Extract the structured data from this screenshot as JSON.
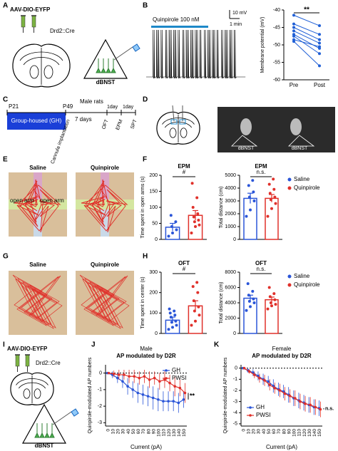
{
  "panel_labels": [
    "A",
    "B",
    "C",
    "D",
    "E",
    "F",
    "G",
    "H",
    "I",
    "J",
    "K"
  ],
  "a": {
    "virus": "AAV-DIO-EYFP",
    "cre": "Drd2::Cre",
    "region": "dBNST"
  },
  "b": {
    "drug": "Quinpirole 100 nM",
    "scale_y": "10 mV",
    "scale_x": "1 min"
  },
  "c": {
    "age_start": "P21",
    "age_end": "P49",
    "animals": "Male rats",
    "housing": "Group-housed (GH)",
    "interval": "7 days",
    "gap1": "1day",
    "gap2": "1day",
    "surgery": "Cannula implantation",
    "tests": [
      "OFT",
      "EPM",
      "SPT"
    ]
  },
  "d": {
    "region_left": "dBNST",
    "region_right": "dBNST"
  },
  "e": {
    "left": "Saline",
    "right": "Quinpirole",
    "arm_left": "open arm",
    "arm_right": "open arm"
  },
  "g": {
    "left": "Saline",
    "right": "Quinpirole"
  },
  "i": {
    "virus": "AAV-DIO-EYFP",
    "cre": "Drd2::Cre",
    "region": "dBNST"
  },
  "chart_data": [
    {
      "type": "paired",
      "categories": [
        "Pre",
        "Post"
      ],
      "y_label": "Membrane potential (mV)",
      "ylim": [
        -60,
        -40
      ],
      "yticks": [
        -40,
        -45,
        -50,
        -55,
        -60
      ],
      "color": "#1f5fd6",
      "significance": "**",
      "values": [
        [
          -41.5,
          -44.5
        ],
        [
          -44,
          -47
        ],
        [
          -45,
          -48.5
        ],
        [
          -46,
          -49.5
        ],
        [
          -47,
          -51
        ],
        [
          -47.5,
          -52.5
        ],
        [
          -48.5,
          -50.5
        ],
        [
          -49,
          -56
        ]
      ]
    },
    {
      "type": "bar",
      "title": "EPM",
      "y_label": "Time spent in open arms (s)",
      "ylim": [
        0,
        200
      ],
      "yticks": [
        0,
        50,
        100,
        150,
        200
      ],
      "significance": "#",
      "series": [
        {
          "color": "#2a55d8",
          "mean": 38,
          "error": 12,
          "values": [
            10,
            20,
            30,
            40,
            55,
            75
          ]
        },
        {
          "color": "#e0302a",
          "mean": 75,
          "error": 15,
          "values": [
            20,
            40,
            45,
            55,
            60,
            70,
            80,
            100,
            130,
            175
          ]
        }
      ]
    },
    {
      "type": "bar",
      "title": "EPM",
      "y_label": "Total distance (cm)",
      "ylim": [
        0,
        5000
      ],
      "yticks": [
        0,
        1000,
        2000,
        3000,
        4000,
        5000
      ],
      "significance": "n.s.",
      "legend": true,
      "series": [
        {
          "name": "Saline",
          "color": "#2a55d8",
          "mean": 3200,
          "error": 400,
          "values": [
            1800,
            2300,
            3000,
            3300,
            3700,
            4200,
            4600
          ]
        },
        {
          "name": "Quinpirole",
          "color": "#e0302a",
          "mean": 3200,
          "error": 300,
          "values": [
            1800,
            2400,
            2800,
            3100,
            3300,
            3600,
            3900,
            4300,
            4700
          ]
        }
      ]
    },
    {
      "type": "bar",
      "title": "OFT",
      "y_label": "Time spent in center (s)",
      "ylim": [
        0,
        300
      ],
      "yticks": [
        0,
        100,
        200,
        300
      ],
      "significance": "#",
      "series": [
        {
          "color": "#2a55d8",
          "mean": 65,
          "error": 15,
          "values": [
            20,
            30,
            40,
            55,
            60,
            80,
            90,
            100,
            110,
            120
          ]
        },
        {
          "color": "#e0302a",
          "mean": 135,
          "error": 25,
          "values": [
            40,
            60,
            90,
            110,
            130,
            160,
            200,
            230,
            250
          ]
        }
      ]
    },
    {
      "type": "bar",
      "title": "OFT",
      "y_label": "Total distance (cm)",
      "ylim": [
        0,
        8000
      ],
      "yticks": [
        0,
        2000,
        4000,
        6000,
        8000
      ],
      "significance": "n.s.",
      "legend": true,
      "series": [
        {
          "name": "Saline",
          "color": "#2a55d8",
          "mean": 4600,
          "error": 400,
          "values": [
            3000,
            3500,
            4000,
            4200,
            4500,
            5000,
            5500,
            6500
          ]
        },
        {
          "name": "Quinpirole",
          "color": "#e0302a",
          "mean": 4400,
          "error": 350,
          "values": [
            3200,
            3600,
            3800,
            4000,
            4400,
            4800,
            5200,
            6000
          ]
        }
      ]
    },
    {
      "type": "line",
      "group": "Male",
      "title": "AP modulated by D2R",
      "x_label": "Current (pA)",
      "y_label": "Quinpirole-modulated AP numbers",
      "legend": "upper right",
      "significance": "**",
      "categories": [
        0,
        10,
        20,
        30,
        40,
        50,
        60,
        70,
        80,
        90,
        100,
        110,
        120,
        130,
        140,
        150
      ],
      "ylim": [
        -3.2,
        0.5
      ],
      "yticks": [
        0,
        -1,
        -2,
        -3
      ],
      "series": [
        {
          "name": "GH",
          "color": "#2a55d8",
          "values": [
            0,
            -0.1,
            -0.3,
            -0.5,
            -0.8,
            -1.0,
            -1.2,
            -1.3,
            -1.4,
            -1.5,
            -1.6,
            -1.7,
            -1.7,
            -1.7,
            -1.8,
            -1.6
          ],
          "errors": [
            0,
            0.2,
            0.3,
            0.4,
            0.5,
            0.5,
            0.6,
            0.6,
            0.6,
            0.7,
            0.7,
            0.6,
            0.6,
            0.6,
            0.6,
            0.5
          ]
        },
        {
          "name": "PWSI",
          "color": "#e0302a",
          "values": [
            0,
            -0.05,
            -0.1,
            -0.1,
            -0.2,
            -0.2,
            -0.3,
            -0.2,
            -0.4,
            -0.3,
            -0.5,
            -0.4,
            -0.6,
            -0.8,
            -0.9,
            -1.2
          ],
          "errors": [
            0,
            0.2,
            0.3,
            0.3,
            0.4,
            0.4,
            0.4,
            0.4,
            0.5,
            0.4,
            0.5,
            0.5,
            0.5,
            0.6,
            0.5,
            0.6
          ]
        }
      ]
    },
    {
      "type": "line",
      "group": "Female",
      "title": "AP modulated by D2R",
      "x_label": "Current (pA)",
      "y_label": "Quinpirole-modulated AP numbers",
      "legend": "lower left",
      "significance": "n.s.",
      "categories": [
        0,
        10,
        20,
        30,
        40,
        50,
        60,
        70,
        80,
        90,
        100,
        110,
        120,
        130,
        140,
        150
      ],
      "ylim": [
        -5.2,
        0.3
      ],
      "yticks": [
        0,
        -1,
        -2,
        -3,
        -4,
        -5
      ],
      "series": [
        {
          "name": "GH",
          "color": "#2a55d8",
          "values": [
            0,
            -0.2,
            -0.4,
            -0.7,
            -1.0,
            -1.2,
            -1.6,
            -1.9,
            -2.1,
            -2.4,
            -2.7,
            -2.9,
            -3.1,
            -3.3,
            -3.5,
            -3.6
          ],
          "errors": [
            0,
            0.2,
            0.3,
            0.4,
            0.5,
            0.5,
            0.6,
            0.6,
            0.6,
            0.7,
            0.7,
            0.7,
            0.7,
            0.7,
            0.7,
            0.7
          ]
        },
        {
          "name": "PWSI",
          "color": "#e0302a",
          "values": [
            0,
            -0.3,
            -0.6,
            -0.9,
            -1.1,
            -1.5,
            -1.8,
            -2.0,
            -2.3,
            -2.5,
            -2.7,
            -3.0,
            -3.2,
            -3.3,
            -3.5,
            -3.7
          ],
          "errors": [
            0,
            0.2,
            0.3,
            0.4,
            0.5,
            0.5,
            0.5,
            0.6,
            0.6,
            0.6,
            0.7,
            0.7,
            0.7,
            0.7,
            0.7,
            0.7
          ]
        }
      ]
    }
  ]
}
